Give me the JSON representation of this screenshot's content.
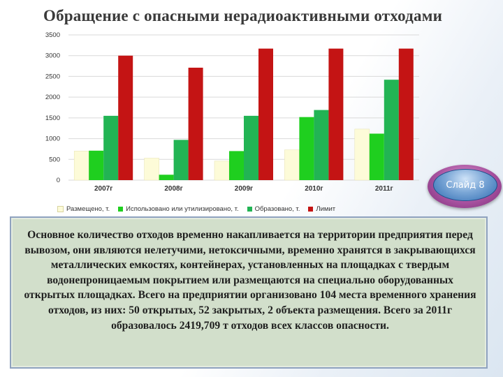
{
  "title": "Обращение с опасными нерадиоактивными отходами",
  "slide_badge": "Слайд 8",
  "description": "Основное количество отходов временно накапливается на территории предприятия перед вывозом, они являются нелетучими, нетоксичными, временно хранятся в закрывающихся металлических емкостях, контейнерах, установленных на площадках с твердым водонепроницаемым покрытием или размещаются на специально оборудованных открытых площадках. Всего на предприятии организовано 104 места временного хранения отходов, из них: 50 открытых, 52 закрытых, 2 объекта размещения. Всего за 2011г образовалось 2419,709 т отходов всех классов опасности.",
  "chart_data": {
    "type": "bar",
    "title": "Обращение с опасными нерадиоактивными отходами",
    "categories": [
      "2007г",
      "2008г",
      "2009г",
      "2010г",
      "2011г"
    ],
    "series": [
      {
        "name": "Размещено, т.",
        "color": "#fdfbd8",
        "values": [
          700,
          530,
          460,
          730,
          1230
        ]
      },
      {
        "name": "Использовано или утилизировано, т.",
        "color": "#1fcf1f",
        "values": [
          710,
          130,
          700,
          1520,
          1120
        ]
      },
      {
        "name": "Образовано, т.",
        "color": "#22b454",
        "values": [
          1550,
          970,
          1550,
          1690,
          2420
        ]
      },
      {
        "name": "Лимит",
        "color": "#c41414",
        "values": [
          3000,
          2710,
          3170,
          3170,
          3170
        ]
      }
    ],
    "y_ticks": [
      "0",
      "500",
      "1000",
      "1500",
      "2000",
      "2500",
      "3000",
      "3500"
    ],
    "ylim": [
      0,
      3500
    ],
    "grid": true,
    "legend_position": "bottom"
  }
}
